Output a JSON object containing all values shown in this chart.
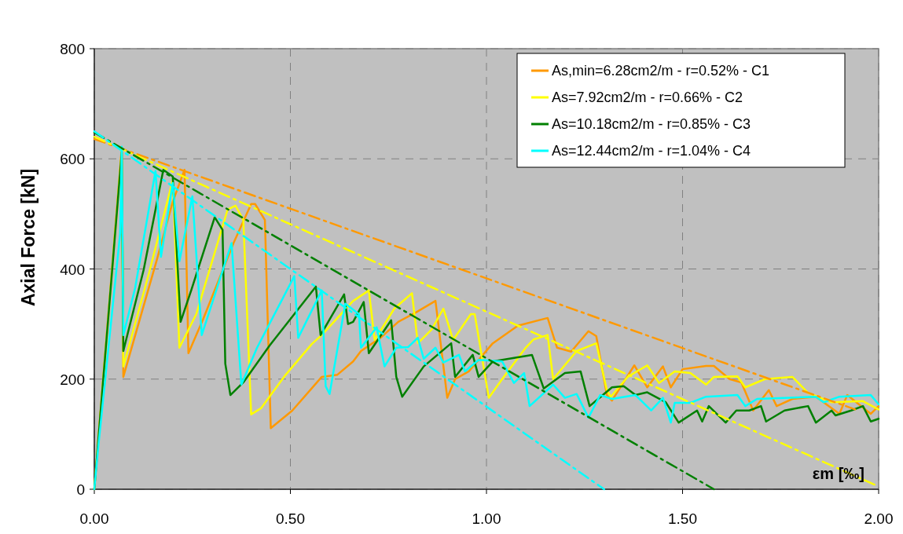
{
  "chart_data": {
    "type": "line",
    "xlabel": "εm [‰]",
    "ylabel": "Axial Force  [kN]",
    "xlim": [
      0,
      2
    ],
    "ylim": [
      0,
      800
    ],
    "xticks": [
      {
        "value": 0,
        "label": "0.00"
      },
      {
        "value": 0.5,
        "label": "0.50"
      },
      {
        "value": 1,
        "label": "1.00"
      },
      {
        "value": 1.5,
        "label": "1.50"
      },
      {
        "value": 2,
        "label": "2.00"
      }
    ],
    "yticks": [
      0,
      200,
      400,
      600,
      800
    ],
    "grid": true,
    "legend": "top right",
    "line_style": "solid",
    "marker": "none",
    "series": [
      {
        "name": "As,min=6.28cm2/m - r=0.52% - C1",
        "color": "#ff9900",
        "x": [
          0,
          0.07,
          0.074,
          0.16,
          0.2,
          0.23,
          0.24,
          0.277,
          0.355,
          0.4,
          0.41,
          0.435,
          0.45,
          0.505,
          0.58,
          0.62,
          0.66,
          0.68,
          0.73,
          0.775,
          0.82,
          0.87,
          0.9,
          0.92,
          0.955,
          1.016,
          1.08,
          1.156,
          1.18,
          1.216,
          1.26,
          1.28,
          1.307,
          1.32,
          1.377,
          1.41,
          1.45,
          1.47,
          1.5,
          1.56,
          1.58,
          1.62,
          1.65,
          1.68,
          1.72,
          1.74,
          1.78,
          1.84,
          1.9,
          1.92,
          1.98,
          2.0
        ],
        "values": [
          0,
          620,
          204,
          418,
          522,
          580,
          247,
          308,
          447,
          518,
          518,
          489,
          111,
          143,
          204,
          208,
          232,
          251,
          275,
          304,
          321,
          342,
          166,
          200,
          214,
          265,
          297,
          311,
          257,
          250,
          287,
          278,
          171,
          161,
          225,
          185,
          223,
          185,
          218,
          224,
          224,
          200,
          194,
          143,
          180,
          151,
          164,
          168,
          137,
          171,
          137,
          151
        ]
      },
      {
        "name": "As=7.92cm2/m - r=0.66% - C2",
        "color": "#ffff00",
        "x": [
          0,
          0.07,
          0.074,
          0.14,
          0.2,
          0.217,
          0.26,
          0.34,
          0.36,
          0.38,
          0.4,
          0.425,
          0.487,
          0.555,
          0.58,
          0.66,
          0.7,
          0.715,
          0.765,
          0.81,
          0.825,
          0.86,
          0.89,
          0.915,
          0.96,
          0.97,
          1.006,
          1.04,
          1.1,
          1.12,
          1.156,
          1.17,
          1.23,
          1.28,
          1.307,
          1.317,
          1.36,
          1.41,
          1.44,
          1.48,
          1.52,
          1.56,
          1.58,
          1.64,
          1.66,
          1.71,
          1.78,
          1.82,
          1.88,
          1.96,
          2.0
        ],
        "values": [
          0,
          615,
          223,
          394,
          561,
          257,
          318,
          508,
          515,
          489,
          136,
          147,
          207,
          264,
          280,
          342,
          361,
          271,
          328,
          356,
          265,
          290,
          328,
          271,
          318,
          318,
          166,
          200,
          257,
          272,
          280,
          200,
          251,
          265,
          180,
          168,
          204,
          225,
          193,
          214,
          211,
          190,
          204,
          205,
          185,
          200,
          204,
          175,
          158,
          160,
          145
        ]
      },
      {
        "name": "As=10.18cm2/m - r=0.85% - C3",
        "color": "#008000",
        "x": [
          0,
          0.07,
          0.074,
          0.126,
          0.176,
          0.2,
          0.22,
          0.247,
          0.307,
          0.327,
          0.334,
          0.347,
          0.38,
          0.447,
          0.565,
          0.577,
          0.637,
          0.647,
          0.66,
          0.687,
          0.7,
          0.757,
          0.77,
          0.785,
          0.84,
          0.91,
          0.92,
          0.965,
          0.98,
          1.016,
          1.116,
          1.146,
          1.2,
          1.24,
          1.263,
          1.32,
          1.35,
          1.38,
          1.41,
          1.457,
          1.49,
          1.537,
          1.55,
          1.567,
          1.61,
          1.637,
          1.67,
          1.7,
          1.713,
          1.76,
          1.82,
          1.84,
          1.88,
          1.89,
          1.93,
          1.96,
          1.98,
          2.0
        ],
        "values": [
          0,
          612,
          251,
          399,
          580,
          568,
          304,
          361,
          494,
          471,
          228,
          171,
          194,
          261,
          368,
          280,
          354,
          300,
          304,
          340,
          247,
          307,
          204,
          168,
          223,
          265,
          204,
          244,
          204,
          232,
          244,
          183,
          211,
          214,
          151,
          185,
          187,
          171,
          176,
          158,
          121,
          143,
          123,
          151,
          121,
          143,
          143,
          151,
          123,
          143,
          151,
          121,
          143,
          134,
          143,
          151,
          123,
          128
        ]
      },
      {
        "name": "As=12.44cm2/m - r=1.04% - C4",
        "color": "#00ffff",
        "x": [
          0,
          0.01,
          0.066,
          0.07,
          0.074,
          0.104,
          0.156,
          0.17,
          0.2,
          0.217,
          0.25,
          0.274,
          0.35,
          0.375,
          0.415,
          0.51,
          0.52,
          0.58,
          0.59,
          0.6,
          0.64,
          0.675,
          0.68,
          0.72,
          0.74,
          0.77,
          0.8,
          0.825,
          0.84,
          0.87,
          0.89,
          0.93,
          0.945,
          0.98,
          1.04,
          1.07,
          1.096,
          1.11,
          1.17,
          1.2,
          1.23,
          1.26,
          1.29,
          1.32,
          1.38,
          1.42,
          1.45,
          1.47,
          1.48,
          1.52,
          1.56,
          1.64,
          1.66,
          1.69,
          1.84,
          1.86,
          1.9,
          1.98,
          2.0
        ],
        "values": [
          0,
          76,
          465,
          622,
          280,
          365,
          578,
          422,
          556,
          414,
          532,
          280,
          447,
          190,
          257,
          387,
          275,
          361,
          187,
          173,
          337,
          318,
          257,
          294,
          223,
          257,
          258,
          275,
          237,
          257,
          230,
          244,
          214,
          235,
          232,
          193,
          211,
          151,
          190,
          166,
          173,
          130,
          171,
          164,
          171,
          143,
          166,
          121,
          157,
          157,
          168,
          171,
          151,
          164,
          168,
          158,
          168,
          171,
          154
        ]
      },
      {
        "type": "line",
        "color": "#ff9900",
        "line_style": "dashed",
        "x": [
          0,
          1.94
        ],
        "values": [
          636,
          145
        ]
      },
      {
        "type": "line",
        "color": "#ffff00",
        "line_style": "dashed",
        "x": [
          0,
          2.0
        ],
        "values": [
          640,
          5
        ]
      },
      {
        "type": "line",
        "color": "#008000",
        "line_style": "dashed",
        "x": [
          0,
          1.58
        ],
        "values": [
          648,
          0
        ]
      },
      {
        "type": "line",
        "color": "#00ffff",
        "line_style": "dashed",
        "x": [
          0,
          1.3
        ],
        "values": [
          650,
          0
        ]
      }
    ]
  }
}
